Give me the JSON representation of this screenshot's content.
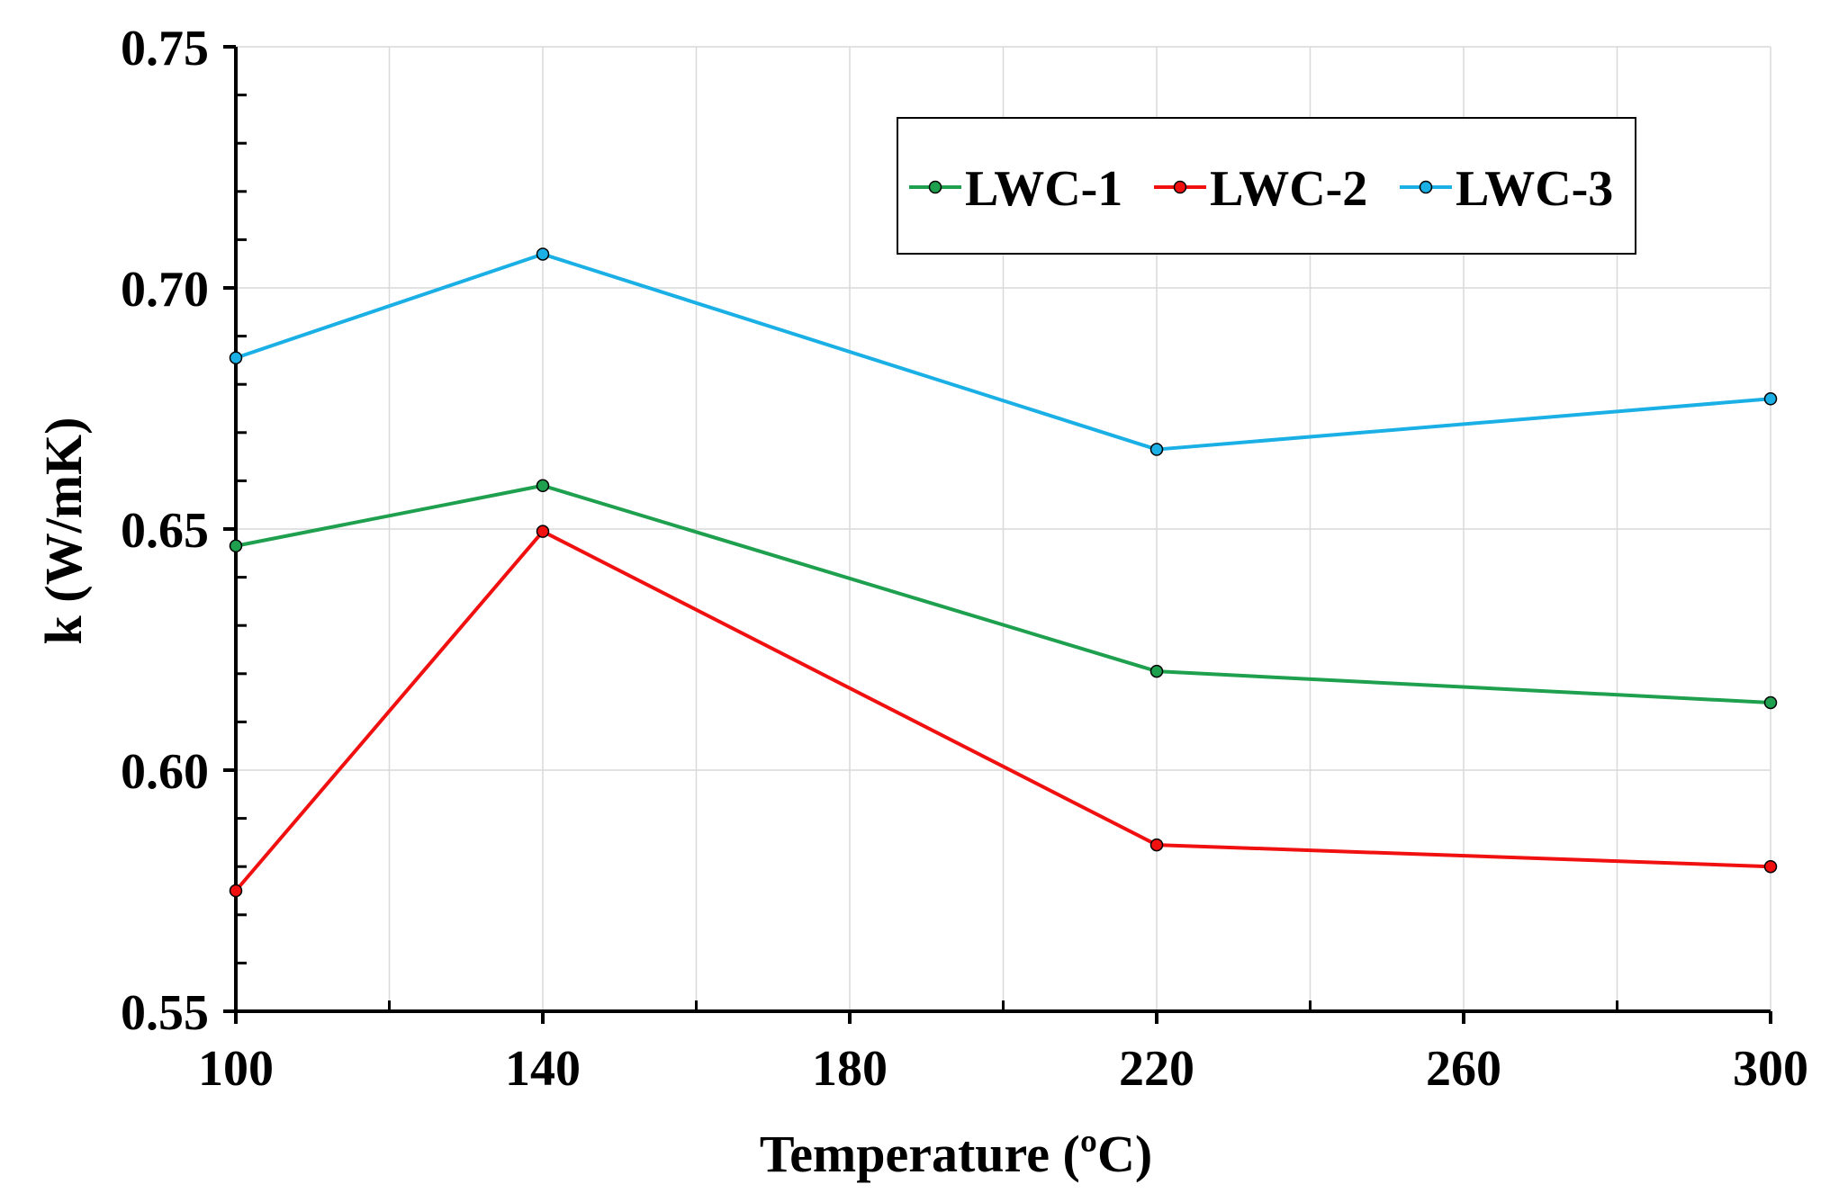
{
  "chart_data": {
    "type": "line",
    "title": "",
    "xlabel": "Temperature (ºC)",
    "ylabel": "k (W/mK)",
    "xlim": [
      100,
      300
    ],
    "ylim": [
      0.55,
      0.75
    ],
    "x_ticks": [
      100,
      140,
      180,
      220,
      260,
      300
    ],
    "x_tick_labels": [
      "100",
      "140",
      "180",
      "220",
      "260",
      "300"
    ],
    "y_ticks": [
      0.55,
      0.6,
      0.65,
      0.7,
      0.75
    ],
    "y_tick_labels": [
      "0.55",
      "0.60",
      "0.65",
      "0.70",
      "0.75"
    ],
    "grid": true,
    "legend_position": "top-right",
    "x": [
      100,
      140,
      220,
      300
    ],
    "series": [
      {
        "name": "LWC-1",
        "color": "#1EA04E",
        "values": [
          0.6465,
          0.659,
          0.6205,
          0.614
        ]
      },
      {
        "name": "LWC-2",
        "color": "#F01010",
        "values": [
          0.575,
          0.6495,
          0.5845,
          0.58
        ]
      },
      {
        "name": "LWC-3",
        "color": "#1AB0E6",
        "values": [
          0.6855,
          0.707,
          0.6665,
          0.677
        ]
      }
    ]
  }
}
